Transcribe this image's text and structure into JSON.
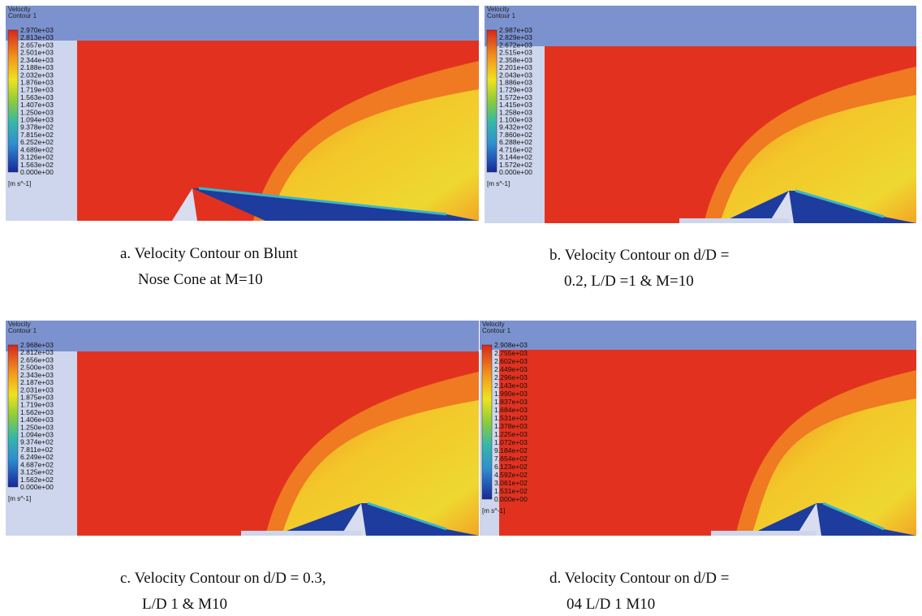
{
  "panels": [
    {
      "legend_title": [
        "Velocity",
        "Contour 1"
      ],
      "legend_labels": [
        "2.970e+03",
        "2.813e+03",
        "2.657e+03",
        "2.501e+03",
        "2.344e+03",
        "2.188e+03",
        "2.032e+03",
        "1.876e+03",
        "1.719e+03",
        "1.563e+03",
        "1.407e+03",
        "1.250e+03",
        "1.094e+03",
        "9.378e+02",
        "7.815e+02",
        "6.252e+02",
        "4.689e+02",
        "3.126e+02",
        "1.563e+02",
        "0.000e+00"
      ],
      "unit": "[m s^-1]",
      "caption": [
        "a. Velocity Contour on Blunt",
        "Nose Cone at M=10"
      ]
    },
    {
      "legend_title": [
        "Velocity",
        "Contour 1"
      ],
      "legend_labels": [
        "2.987e+03",
        "2.829e+03",
        "2.672e+03",
        "2.515e+03",
        "2.358e+03",
        "2.201e+03",
        "2.043e+03",
        "1.886e+03",
        "1.729e+03",
        "1.572e+03",
        "1.415e+03",
        "1.258e+03",
        "1.100e+03",
        "9.432e+02",
        "7.860e+02",
        "6.288e+02",
        "4.716e+02",
        "3.144e+02",
        "1.572e+02",
        "0.000e+00"
      ],
      "unit": "[m s^-1]",
      "caption": [
        "b. Velocity Contour on d/D =",
        "0.2, L/D =1 & M=10"
      ]
    },
    {
      "legend_title": [
        "Velocity",
        "Contour 1"
      ],
      "legend_labels": [
        "2.968e+03",
        "2.812e+03",
        "2.656e+03",
        "2.500e+03",
        "2.343e+03",
        "2.187e+03",
        "2.031e+03",
        "1.875e+03",
        "1.719e+03",
        "1.562e+03",
        "1.406e+03",
        "1.250e+03",
        "1.094e+03",
        "9.374e+02",
        "7.811e+02",
        "6.249e+02",
        "4.687e+02",
        "3.125e+02",
        "1.562e+02",
        "0.000e+00"
      ],
      "unit": "[m s^-1]",
      "caption": [
        "c. Velocity Contour on d/D = 0.3,",
        "L/D 1 & M10"
      ]
    },
    {
      "legend_title": [
        "Velocity",
        "Contour 1"
      ],
      "legend_labels": [
        "2.908e+03",
        "2.755e+03",
        "2.602e+03",
        "2.449e+03",
        "2.296e+03",
        "2.143e+03",
        "1.990e+03",
        "1.837e+03",
        "1.684e+03",
        "1.531e+03",
        "1.378e+03",
        "1.225e+03",
        "1.072e+03",
        "9.184e+02",
        "7.654e+02",
        "6.123e+02",
        "4.592e+02",
        "3.061e+02",
        "1.531e+02",
        "0.000e+00"
      ],
      "unit": "[m s^-1]",
      "caption": [
        "d. Velocity Contour on d/D =",
        "04 L/D 1 M10"
      ]
    }
  ]
}
